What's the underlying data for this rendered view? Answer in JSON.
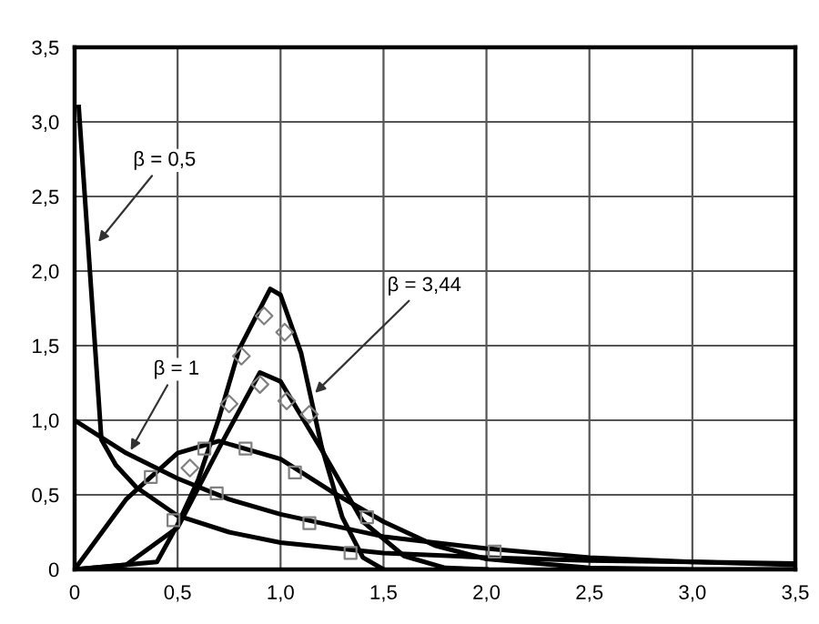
{
  "chart_data": {
    "type": "line",
    "xlim": [
      0,
      3.5
    ],
    "ylim": [
      0,
      3.5
    ],
    "xticks": [
      0,
      {
        "value": 0.5,
        "label": "0,5"
      },
      {
        "value": 1.0,
        "label": "1,0"
      },
      {
        "value": 1.5,
        "label": "1,5"
      },
      {
        "value": 2.0,
        "label": "2,0"
      },
      {
        "value": 2.5,
        "label": "2,5"
      },
      {
        "value": 3.0,
        "label": "3,0"
      },
      {
        "value": 3.5,
        "label": "3,5"
      }
    ],
    "yticks": [
      0,
      {
        "value": 0.5,
        "label": "0,5"
      },
      {
        "value": 1.0,
        "label": "1,0"
      },
      {
        "value": 1.5,
        "label": "1,5"
      },
      {
        "value": 2.0,
        "label": "2,0"
      },
      {
        "value": 2.5,
        "label": "2,5"
      },
      {
        "value": 3.0,
        "label": "3,0"
      },
      {
        "value": 3.5,
        "label": "3,5"
      }
    ],
    "grid": true,
    "legend": false,
    "marker": "none",
    "line_style": "solid",
    "series": [
      {
        "color": "#000000",
        "x": [
          0.02,
          0.13,
          0.2,
          0.3,
          0.5,
          0.75,
          1.0,
          1.5,
          2.0,
          2.5,
          3.0,
          3.5
        ],
        "values": [
          3.1,
          0.87,
          0.7,
          0.55,
          0.36,
          0.25,
          0.18,
          0.11,
          0.08,
          0.06,
          0.05,
          0.04
        ]
      },
      {
        "color": "#000000",
        "x": [
          0,
          0.25,
          0.5,
          0.75,
          1.0,
          1.5,
          2.0,
          2.5,
          3.0,
          3.5
        ],
        "values": [
          1.0,
          0.78,
          0.61,
          0.47,
          0.37,
          0.22,
          0.14,
          0.08,
          0.05,
          0.03
        ]
      },
      {
        "color": "#000000",
        "x": [
          0,
          0.25,
          0.5,
          0.7,
          1.0,
          1.25,
          1.5,
          1.75,
          2.0,
          2.5,
          3.0,
          3.5
        ],
        "values": [
          0,
          0.47,
          0.78,
          0.86,
          0.74,
          0.52,
          0.32,
          0.16,
          0.07,
          0.01,
          0,
          0
        ]
      },
      {
        "color": "#000000",
        "x": [
          0,
          0.25,
          0.5,
          0.7,
          0.9,
          1.0,
          1.2,
          1.4,
          1.6,
          1.8,
          2.0
        ],
        "values": [
          0,
          0.03,
          0.28,
          0.81,
          1.32,
          1.26,
          0.8,
          0.32,
          0.09,
          0.01,
          0
        ]
      },
      {
        "color": "#000000",
        "x": [
          0,
          0.4,
          0.5,
          0.6,
          0.7,
          0.8,
          0.95,
          1.0,
          1.1,
          1.2,
          1.3,
          1.4,
          1.5
        ],
        "values": [
          0,
          0.05,
          0.3,
          0.6,
          1.01,
          1.48,
          1.88,
          1.84,
          1.45,
          0.82,
          0.35,
          0.08,
          0
        ]
      },
      {
        "type": "scatter",
        "marker": "diamond",
        "color": "#808080",
        "x": [
          0.92,
          1.02,
          0.81,
          0.9,
          0.75,
          1.03,
          1.14,
          0.56
        ],
        "values": [
          1.7,
          1.59,
          1.43,
          1.24,
          1.11,
          1.13,
          1.04,
          0.68
        ]
      },
      {
        "type": "scatter",
        "marker": "square",
        "color": "#808080",
        "x": [
          0.37,
          0.48,
          0.63,
          0.69,
          0.83,
          1.07,
          1.14,
          1.34,
          1.42,
          2.04
        ],
        "values": [
          0.62,
          0.33,
          0.81,
          0.51,
          0.81,
          0.65,
          0.31,
          0.11,
          0.35,
          0.12
        ]
      }
    ],
    "annotations": [
      {
        "text": "β = 0,5",
        "x": 0.1,
        "y": 2.17
      },
      {
        "text": "β = 1",
        "x": 0.26,
        "y": 0.77
      },
      {
        "text": "β = 3,44",
        "x": 1.15,
        "y": 1.16
      }
    ]
  }
}
